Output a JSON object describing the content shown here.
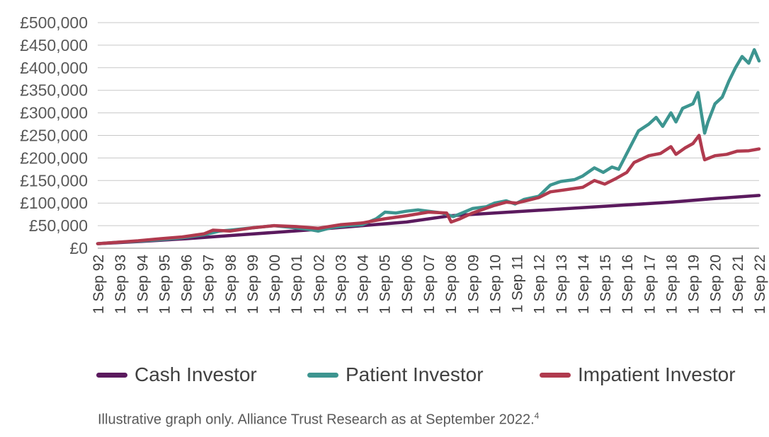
{
  "chart_data": {
    "type": "line",
    "title": "",
    "xlabel": "",
    "ylabel": "",
    "ylim": [
      0,
      500000
    ],
    "yticks": [
      0,
      50000,
      100000,
      150000,
      200000,
      250000,
      300000,
      350000,
      400000,
      450000,
      500000
    ],
    "ytick_labels": [
      "£0",
      "£50,000",
      "£100,000",
      "£150,000",
      "£200,000",
      "£250,000",
      "£300,000",
      "£350,000",
      "£400,000",
      "£450,000",
      "£500,000"
    ],
    "xlim": [
      1992.67,
      2022.67
    ],
    "xtick_labels": [
      "1 Sep 92",
      "1 Sep 93",
      "1 Sep 94",
      "1 Sep 95",
      "1 Sep 96",
      "1 Sep 97",
      "1 Sep 98",
      "1 Sep 99",
      "1 Sep 00",
      "1 Sep 01",
      "1 Sep 02",
      "1 Sep 03",
      "1 Sep 04",
      "1 Sep 05",
      "1 Sep 06",
      "1 Sep 07",
      "1 Sep 08",
      "1 Sep 09",
      "1 Sep 10",
      "1 Sep 11",
      "1 Sep 12",
      "1 Sep 13",
      "1 Sep 14",
      "1 Sep 15",
      "1 Sep 16",
      "1 Sep 17",
      "1 Sep 18",
      "1 Sep 19",
      "1 Sep 20",
      "1 Sep 21",
      "1 Sep 22"
    ],
    "grid": true,
    "legend_position": "bottom",
    "series": [
      {
        "name": "Cash Investor",
        "color": "#5b1a5e",
        "points": [
          [
            1992.67,
            10000
          ],
          [
            1994.67,
            15000
          ],
          [
            1996.67,
            21000
          ],
          [
            1998.67,
            28000
          ],
          [
            2000.67,
            35000
          ],
          [
            2002.67,
            42000
          ],
          [
            2004.67,
            50000
          ],
          [
            2006.67,
            58000
          ],
          [
            2008.67,
            72000
          ],
          [
            2010.67,
            78000
          ],
          [
            2012.67,
            84000
          ],
          [
            2014.67,
            90000
          ],
          [
            2016.67,
            96000
          ],
          [
            2018.67,
            102000
          ],
          [
            2020.67,
            110000
          ],
          [
            2022.67,
            117000
          ]
        ]
      },
      {
        "name": "Patient Investor",
        "color": "#3d9590",
        "points": [
          [
            1992.67,
            10000
          ],
          [
            1993.5,
            13000
          ],
          [
            1994.5,
            15500
          ],
          [
            1995.5,
            19000
          ],
          [
            1996.5,
            23000
          ],
          [
            1997.5,
            30000
          ],
          [
            1998.2,
            38000
          ],
          [
            1998.67,
            40000
          ],
          [
            1999.67,
            45000
          ],
          [
            2000.67,
            50000
          ],
          [
            2001.5,
            46000
          ],
          [
            2002.2,
            42000
          ],
          [
            2002.67,
            38000
          ],
          [
            2003.3,
            46000
          ],
          [
            2004.0,
            50000
          ],
          [
            2004.67,
            52000
          ],
          [
            2005.3,
            65000
          ],
          [
            2005.7,
            80000
          ],
          [
            2006.2,
            78000
          ],
          [
            2006.67,
            82000
          ],
          [
            2007.2,
            85000
          ],
          [
            2007.67,
            82000
          ],
          [
            2008.3,
            78000
          ],
          [
            2008.8,
            70000
          ],
          [
            2009.2,
            78000
          ],
          [
            2009.67,
            88000
          ],
          [
            2010.3,
            92000
          ],
          [
            2010.67,
            100000
          ],
          [
            2011.2,
            105000
          ],
          [
            2011.6,
            98000
          ],
          [
            2012.0,
            108000
          ],
          [
            2012.67,
            115000
          ],
          [
            2013.2,
            140000
          ],
          [
            2013.67,
            148000
          ],
          [
            2014.3,
            152000
          ],
          [
            2014.67,
            160000
          ],
          [
            2015.2,
            178000
          ],
          [
            2015.6,
            168000
          ],
          [
            2016.0,
            180000
          ],
          [
            2016.3,
            175000
          ],
          [
            2016.67,
            210000
          ],
          [
            2017.2,
            260000
          ],
          [
            2017.67,
            275000
          ],
          [
            2018.0,
            290000
          ],
          [
            2018.3,
            270000
          ],
          [
            2018.67,
            300000
          ],
          [
            2018.9,
            280000
          ],
          [
            2019.2,
            310000
          ],
          [
            2019.67,
            320000
          ],
          [
            2019.9,
            345000
          ],
          [
            2020.05,
            300000
          ],
          [
            2020.2,
            255000
          ],
          [
            2020.35,
            280000
          ],
          [
            2020.67,
            320000
          ],
          [
            2021.0,
            335000
          ],
          [
            2021.3,
            370000
          ],
          [
            2021.6,
            400000
          ],
          [
            2021.9,
            425000
          ],
          [
            2022.2,
            410000
          ],
          [
            2022.45,
            440000
          ],
          [
            2022.67,
            415000
          ]
        ]
      },
      {
        "name": "Impatient Investor",
        "color": "#b03a4e",
        "points": [
          [
            1992.67,
            10000
          ],
          [
            1993.5,
            13000
          ],
          [
            1994.5,
            16500
          ],
          [
            1995.5,
            21000
          ],
          [
            1996.5,
            25000
          ],
          [
            1997.5,
            32000
          ],
          [
            1997.9,
            40000
          ],
          [
            1998.67,
            38000
          ],
          [
            1999.67,
            45000
          ],
          [
            2000.67,
            50000
          ],
          [
            2001.67,
            48000
          ],
          [
            2002.67,
            44000
          ],
          [
            2003.67,
            52000
          ],
          [
            2004.67,
            56000
          ],
          [
            2005.67,
            65000
          ],
          [
            2006.67,
            72000
          ],
          [
            2007.67,
            80000
          ],
          [
            2008.5,
            78000
          ],
          [
            2008.7,
            58000
          ],
          [
            2009.1,
            65000
          ],
          [
            2009.67,
            78000
          ],
          [
            2010.67,
            95000
          ],
          [
            2011.2,
            102000
          ],
          [
            2011.67,
            100000
          ],
          [
            2012.67,
            112000
          ],
          [
            2013.2,
            125000
          ],
          [
            2013.67,
            128000
          ],
          [
            2014.67,
            135000
          ],
          [
            2015.2,
            150000
          ],
          [
            2015.67,
            142000
          ],
          [
            2016.2,
            155000
          ],
          [
            2016.67,
            168000
          ],
          [
            2017.0,
            190000
          ],
          [
            2017.67,
            205000
          ],
          [
            2018.2,
            210000
          ],
          [
            2018.67,
            225000
          ],
          [
            2018.9,
            208000
          ],
          [
            2019.3,
            222000
          ],
          [
            2019.67,
            232000
          ],
          [
            2019.95,
            250000
          ],
          [
            2020.1,
            215000
          ],
          [
            2020.2,
            196000
          ],
          [
            2020.67,
            205000
          ],
          [
            2021.2,
            208000
          ],
          [
            2021.67,
            215000
          ],
          [
            2022.2,
            216000
          ],
          [
            2022.67,
            220000
          ]
        ]
      }
    ]
  },
  "footnote": "Illustrative graph only. Alliance Trust Research as at September 2022.",
  "footnote_marker": "4"
}
